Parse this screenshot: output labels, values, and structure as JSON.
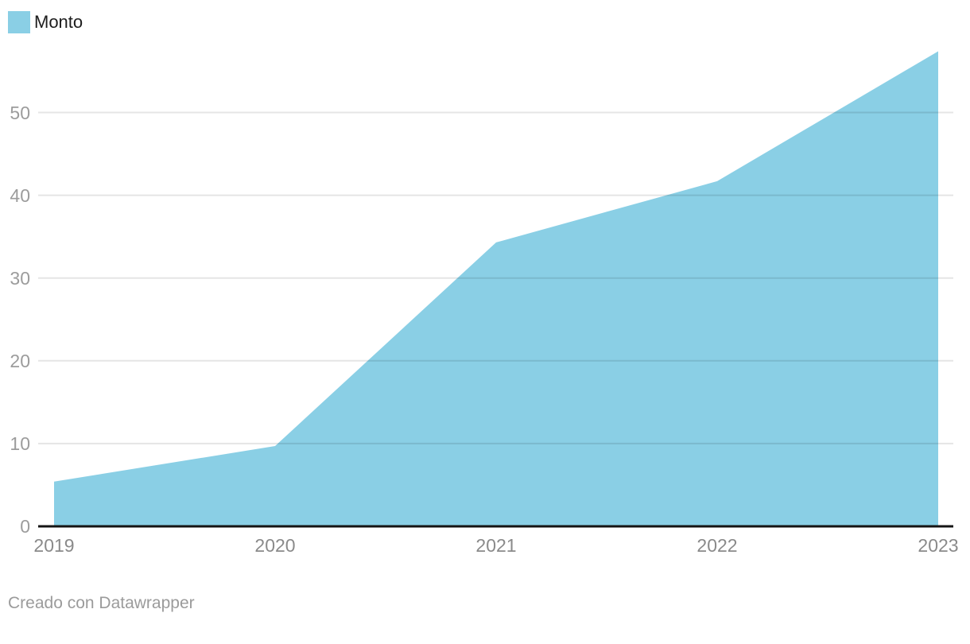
{
  "legend": {
    "label": "Monto"
  },
  "footer": {
    "attribution": "Creado con Datawrapper"
  },
  "colors": {
    "area_fill": "#8ACFE5",
    "baseline": "#141414",
    "gridline_rgba": "rgba(0,0,0,0.10)",
    "y_tick_text": "#9c9c9c",
    "x_tick_text": "#8a8a8a",
    "footer_text": "#9b9b9b",
    "legend_text": "#1d1d1d"
  },
  "chart_data": {
    "type": "area",
    "title": "",
    "xlabel": "",
    "ylabel": "",
    "x": [
      "2019",
      "2020",
      "2021",
      "2022",
      "2023"
    ],
    "series": [
      {
        "name": "Monto",
        "values": [
          5.4,
          9.7,
          34.3,
          41.7,
          57.4
        ]
      }
    ],
    "y_ticks": [
      0,
      10,
      20,
      30,
      40,
      50
    ],
    "ylim": [
      0,
      57.4
    ],
    "grid": "horizontal",
    "legend_position": "top-left"
  }
}
